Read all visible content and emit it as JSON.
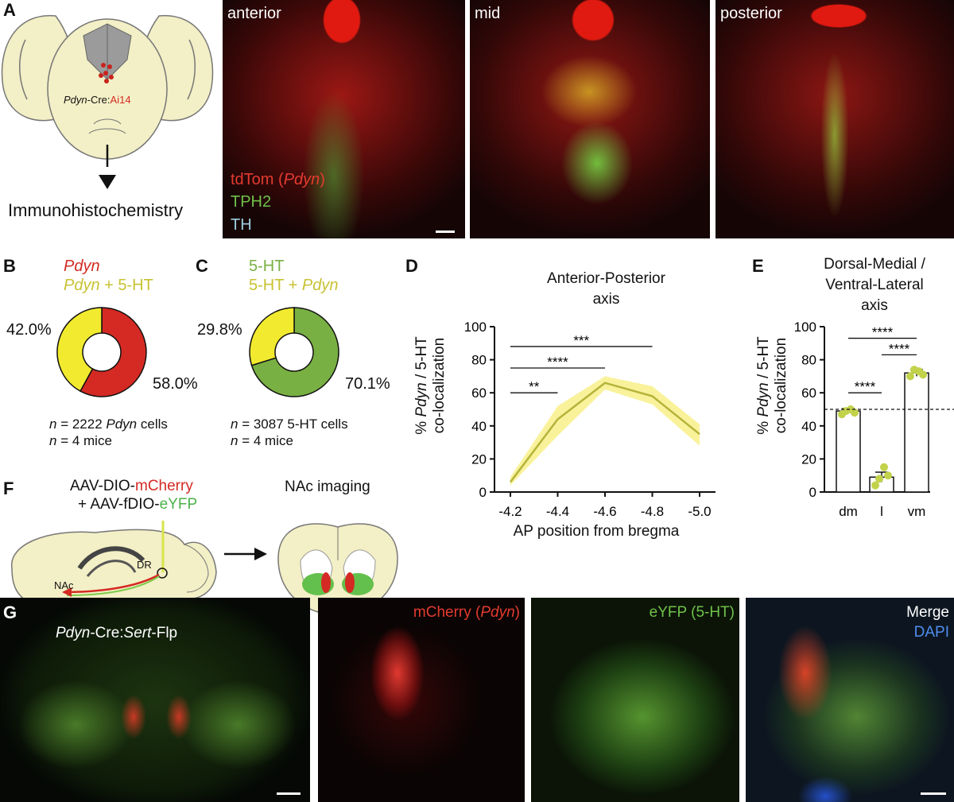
{
  "colors": {
    "pdyn_red": "#d42a23",
    "overlap_yellow": "#f2ea2e",
    "sert_green": "#79b043",
    "label_yellow": "#c8c232",
    "brain_fill": "#f3efc6",
    "micro_bg": "#0b0606"
  },
  "panel_letters": [
    "A",
    "B",
    "C",
    "D",
    "E",
    "F",
    "G"
  ],
  "panel_a": {
    "schematic_label_italic": "Pdyn",
    "schematic_label_mid": "-Cre:",
    "schematic_label_red": "Ai14",
    "arrow_caption": "Immunohistochemistry",
    "images": [
      {
        "title": "anterior"
      },
      {
        "title": "mid"
      },
      {
        "title": "posterior"
      }
    ],
    "legend": {
      "l1_prefix": "tdTom (",
      "l1_italic": "Pdyn",
      "l1_suffix": ")",
      "l2": "TPH2",
      "l3": "TH"
    }
  },
  "panel_b": {
    "legend_line1": "Pdyn",
    "legend_line2_italic": "Pdyn",
    "legend_line2_rest": " + 5-HT",
    "pct_yellow": "42.0%",
    "pct_red": "58.0%",
    "yellow_fraction": 0.42,
    "n_cells_prefix": "n",
    "n_cells_rest": " = 2222 ",
    "n_cells_italic": "Pdyn",
    "n_cells_suffix": " cells",
    "n_mice_prefix": "n",
    "n_mice_rest": " = 4 mice"
  },
  "panel_c": {
    "legend_line1": "5-HT",
    "legend_line2_rest": "5-HT + ",
    "legend_line2_italic": "Pdyn",
    "pct_yellow": "29.8%",
    "pct_green": "70.1%",
    "yellow_fraction": 0.298,
    "n_cells_prefix": "n",
    "n_cells_rest": " = 3087 5-HT cells",
    "n_mice_prefix": "n",
    "n_mice_rest": " = 4 mice"
  },
  "panel_d": {
    "title_line1": "Anterior-Posterior",
    "title_line2": "axis",
    "ylabel_italic": "Pdyn",
    "ylabel_prefix": "% ",
    "ylabel_suffix": " / 5-HT",
    "ylabel_line2": "co-localization",
    "xlabel": "AP position from bregma",
    "sig": [
      {
        "from": "-4.2",
        "to": "-4.4",
        "label": "**"
      },
      {
        "from": "-4.2",
        "to": "-4.6",
        "label": "****"
      },
      {
        "from": "-4.2",
        "to": "-4.8",
        "label": "***"
      }
    ]
  },
  "panel_e": {
    "title_line1": "Dorsal-Medial /",
    "title_line2": "Ventral-Lateral",
    "title_line3": "axis",
    "ylabel_prefix": "% ",
    "ylabel_italic": "Pdyn",
    "ylabel_suffix": " / 5-HT",
    "ylabel_line2": "co-localization",
    "sig": [
      {
        "from": "dm",
        "to": "l",
        "label": "****"
      },
      {
        "from": "l",
        "to": "vm",
        "label": "****"
      },
      {
        "from": "dm",
        "to": "vm",
        "label": "****"
      }
    ]
  },
  "chart_data": [
    {
      "type": "line",
      "title": "Anterior-Posterior axis",
      "xlabel": "AP position from bregma",
      "ylabel": "% Pdyn / 5-HT co-localization",
      "x": [
        "-4.2",
        "-4.4",
        "-4.6",
        "-4.8",
        "-5.0"
      ],
      "series": [
        {
          "values": [
            6,
            44,
            66,
            58,
            35
          ],
          "lower": [
            4,
            34,
            62,
            53,
            28
          ],
          "upper": [
            9,
            52,
            70,
            64,
            41
          ]
        }
      ],
      "yticks": [
        0,
        20,
        40,
        60,
        80,
        100
      ],
      "ylim": [
        0,
        100
      ],
      "line_color": "#b4b43a",
      "band_color": "#f8f08a"
    },
    {
      "type": "bar",
      "title": "Dorsal-Medial / Ventral-Lateral axis",
      "categories": [
        "dm",
        "l",
        "vm"
      ],
      "values": [
        49,
        9,
        72
      ],
      "errors": [
        1.5,
        3,
        2
      ],
      "points": [
        [
          47,
          49,
          50,
          48
        ],
        [
          4,
          8,
          15,
          10
        ],
        [
          70,
          74,
          73,
          71
        ]
      ],
      "reference_line": 50,
      "yticks": [
        0,
        20,
        40,
        60,
        80,
        100
      ],
      "ylim": [
        0,
        100
      ],
      "ylabel": "% Pdyn / 5-HT co-localization",
      "point_color": "#c2d24a"
    },
    {
      "type": "pie",
      "title": "",
      "labels": [
        "Pdyn",
        "Pdyn + 5-HT"
      ],
      "values": [
        58.0,
        42.0
      ],
      "colors": [
        "#d42a23",
        "#f2ea2e"
      ]
    },
    {
      "type": "pie",
      "title": "",
      "labels": [
        "5-HT",
        "5-HT + Pdyn"
      ],
      "values": [
        70.1,
        29.8
      ],
      "colors": [
        "#79b043",
        "#f2ea2e"
      ]
    }
  ],
  "panel_f": {
    "line1_prefix": "AAV-DIO-",
    "line1_colored": "mCherry",
    "line2_prefix": "+ AAV-fDIO-",
    "line2_colored": "eYFP",
    "dr_label": "DR",
    "nac_label": "NAc",
    "imaging_title": "NAc imaging"
  },
  "panel_g": {
    "overlay_italic1": "Pdyn",
    "overlay_mid": "-Cre:",
    "overlay_italic2": "Sert",
    "overlay_suffix": "-Flp",
    "mcherry_prefix": "mCherry (",
    "mcherry_italic": "Pdyn",
    "mcherry_suffix": ")",
    "eyfp": "eYFP (5-HT)",
    "merge": "Merge",
    "dapi": "DAPI"
  }
}
